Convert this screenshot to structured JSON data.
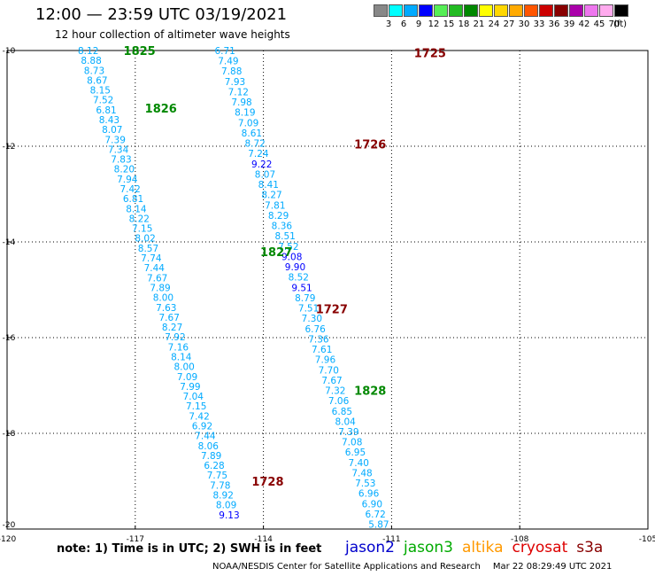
{
  "header": {
    "title": "12:00 — 23:59 UTC 03/19/2021",
    "subtitle": "12 hour collection of altimeter wave heights"
  },
  "color_scale": {
    "unit": "(ft)",
    "bins": [
      {
        "color": "#888888",
        "label": "3"
      },
      {
        "color": "#00ffff",
        "label": "6"
      },
      {
        "color": "#00aaff",
        "label": "9"
      },
      {
        "color": "#0000ff",
        "label": "12"
      },
      {
        "color": "#55ee55",
        "label": "15"
      },
      {
        "color": "#22bb22",
        "label": "18"
      },
      {
        "color": "#008800",
        "label": "21"
      },
      {
        "color": "#ffff00",
        "label": "24"
      },
      {
        "color": "#ffd700",
        "label": "27"
      },
      {
        "color": "#ffaa00",
        "label": "30"
      },
      {
        "color": "#ff5500",
        "label": "33"
      },
      {
        "color": "#cc0000",
        "label": "36"
      },
      {
        "color": "#880000",
        "label": "39"
      },
      {
        "color": "#aa00aa",
        "label": "42"
      },
      {
        "color": "#ee77ee",
        "label": "45"
      },
      {
        "color": "#ffaaee",
        "label": "70"
      },
      {
        "color": "#000000",
        "label": ""
      }
    ]
  },
  "map": {
    "lon_range": [
      -120,
      -105
    ],
    "lat_range": [
      -20,
      -10
    ],
    "lon_ticks": [
      -120,
      -117,
      -114,
      -111,
      -108,
      -105
    ],
    "lat_ticks": [
      -10,
      -12,
      -14,
      -16,
      -18,
      -20
    ],
    "lon_tick_labels": [
      "-120",
      "-117",
      "-114",
      "-111",
      "-108",
      "-105"
    ],
    "lat_tick_labels": [
      "-10",
      "-12",
      "-14",
      "-16",
      "-18",
      "-20"
    ],
    "grid": "dotted"
  },
  "colors": {
    "low": "#00aaff",
    "mid": "#0000ff",
    "jason3": "#008800",
    "cryosat": "#880000"
  },
  "tracks": [
    {
      "name": "descending-a",
      "start": [
        -114.9,
        -10.0
      ],
      "end": [
        -111.3,
        -19.9
      ],
      "values": [
        "6.71",
        "7.49",
        "7.88",
        "7.93",
        "7.12",
        "7.98",
        "8.19",
        "7.09",
        "8.61",
        "8.72",
        "7.24",
        "9.22",
        "8.07",
        "8.41",
        "8.27",
        "7.81",
        "8.29",
        "8.36",
        "8.51",
        "7.52",
        "9.08",
        "9.90",
        "8.52",
        "9.51",
        "8.79",
        "7.51",
        "7.30",
        "6.76",
        "7.36",
        "7.61",
        "7.96",
        "7.70",
        "7.67",
        "7.32",
        "7.06",
        "6.85",
        "8.04",
        "7.39",
        "7.08",
        "6.95",
        "7.40",
        "7.48",
        "7.53",
        "6.96",
        "6.90",
        "6.72",
        "5.87"
      ]
    },
    {
      "name": "ascending-b",
      "start": [
        -118.1,
        -10.0
      ],
      "end": [
        -114.8,
        -19.7
      ],
      "values": [
        "8.12",
        "8.88",
        "8.73",
        "8.67",
        "8.15",
        "7.52",
        "6.81",
        "8.43",
        "8.07",
        "7.39",
        "7.34",
        "7.83",
        "8.20",
        "7.94",
        "7.42",
        "6.81",
        "8.14",
        "8.22",
        "7.15",
        "8.02",
        "8.57",
        "7.74",
        "7.44",
        "7.67",
        "7.89",
        "8.00",
        "7.63",
        "7.67",
        "8.27",
        "7.92",
        "7.16",
        "8.14",
        "8.00",
        "7.09",
        "7.99",
        "7.04",
        "7.15",
        "7.42",
        "6.92",
        "7.44",
        "8.06",
        "7.89",
        "6.28",
        "7.75",
        "7.78",
        "8.92",
        "8.09",
        "9.13"
      ]
    }
  ],
  "orbit_labels": [
    {
      "text": "1825",
      "lon": -116.9,
      "lat": -10.0,
      "color": "#008800"
    },
    {
      "text": "1725",
      "lon": -110.1,
      "lat": -10.05,
      "color": "#880000"
    },
    {
      "text": "1826",
      "lon": -116.4,
      "lat": -11.2,
      "color": "#008800"
    },
    {
      "text": "1726",
      "lon": -111.5,
      "lat": -11.95,
      "color": "#880000"
    },
    {
      "text": "1827",
      "lon": -113.7,
      "lat": -14.2,
      "color": "#008800"
    },
    {
      "text": "1727",
      "lon": -112.4,
      "lat": -15.4,
      "color": "#880000"
    },
    {
      "text": "1828",
      "lon": -111.5,
      "lat": -17.1,
      "color": "#008800"
    },
    {
      "text": "1728",
      "lon": -113.9,
      "lat": -19.0,
      "color": "#880000"
    }
  ],
  "footer": {
    "note": "note: 1) Time is in UTC; 2) SWH is in feet",
    "legend": [
      {
        "label": "jason2",
        "color": "#0000cc"
      },
      {
        "label": "jason3",
        "color": "#00aa00"
      },
      {
        "label": "altika",
        "color": "#ff9900"
      },
      {
        "label": "cryosat",
        "color": "#dd0000"
      },
      {
        "label": "s3a",
        "color": "#880000"
      }
    ],
    "credit": "NOAA/NESDIS Center for Satellite Applications and Research",
    "timestamp": "Mar 22 08:29:49 UTC 2021"
  }
}
